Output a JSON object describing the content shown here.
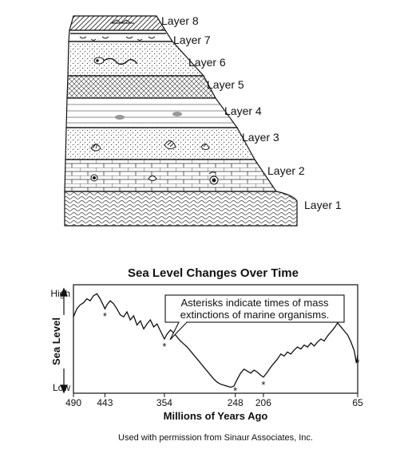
{
  "strata": {
    "layers": [
      {
        "label": "Layer 8"
      },
      {
        "label": "Layer 7"
      },
      {
        "label": "Layer 6"
      },
      {
        "label": "Layer 5"
      },
      {
        "label": "Layer 4"
      },
      {
        "label": "Layer 3"
      },
      {
        "label": "Layer 2"
      },
      {
        "label": "Layer 1"
      }
    ]
  },
  "chart_data": {
    "type": "line",
    "title": "Sea Level Changes Over Time",
    "xlabel": "Millions of Years Ago",
    "ylabel": "Sea Level",
    "y_high_label": "High",
    "y_low_label": "Low",
    "x_reversed": true,
    "xlim": [
      490,
      65
    ],
    "ylim": [
      0,
      1
    ],
    "x_ticks": [
      "490",
      "443",
      "354",
      "248",
      "206",
      "65"
    ],
    "tick_values": [
      490,
      443,
      354,
      248,
      206,
      65
    ],
    "series": [
      {
        "x": [
          490,
          485,
          480,
          475,
          470,
          465,
          460,
          455,
          450,
          445,
          443,
          440,
          435,
          430,
          425,
          420,
          415,
          410,
          405,
          400,
          395,
          390,
          385,
          380,
          375,
          370,
          365,
          360,
          354,
          350,
          345,
          340,
          335,
          330,
          325,
          320,
          315,
          310,
          305,
          300,
          295,
          290,
          285,
          280,
          275,
          270,
          265,
          260,
          255,
          250,
          248,
          245,
          240,
          235,
          230,
          225,
          220,
          215,
          210,
          206,
          200,
          195,
          190,
          185,
          180,
          175,
          170,
          165,
          160,
          155,
          150,
          145,
          140,
          135,
          130,
          125,
          120,
          115,
          110,
          105,
          100,
          95,
          90,
          85,
          80,
          75,
          70,
          67,
          65
        ],
        "values": [
          0.72,
          0.8,
          0.84,
          0.86,
          0.9,
          0.88,
          0.93,
          0.95,
          0.9,
          0.83,
          0.8,
          0.84,
          0.88,
          0.85,
          0.8,
          0.74,
          0.72,
          0.77,
          0.69,
          0.73,
          0.64,
          0.68,
          0.6,
          0.65,
          0.69,
          0.62,
          0.65,
          0.58,
          0.5,
          0.55,
          0.59,
          0.56,
          0.52,
          0.48,
          0.45,
          0.42,
          0.38,
          0.34,
          0.3,
          0.26,
          0.22,
          0.18,
          0.14,
          0.1,
          0.07,
          0.05,
          0.04,
          0.03,
          0.02,
          0.03,
          0.06,
          0.1,
          0.16,
          0.2,
          0.18,
          0.16,
          0.19,
          0.17,
          0.14,
          0.12,
          0.17,
          0.22,
          0.26,
          0.3,
          0.35,
          0.33,
          0.37,
          0.35,
          0.39,
          0.42,
          0.4,
          0.44,
          0.42,
          0.46,
          0.43,
          0.47,
          0.5,
          0.48,
          0.53,
          0.57,
          0.61,
          0.66,
          0.62,
          0.58,
          0.54,
          0.47,
          0.38,
          0.26,
          0.34
        ]
      }
    ],
    "extinction_events": [
      443,
      354,
      248,
      206,
      65
    ],
    "annotation": "Asterisks indicate times of mass extinctions of marine organisms.",
    "annotation_lines": [
      "Asterisks indicate times of mass",
      "extinctions of marine organisms."
    ]
  },
  "credit": "Used with permission from Sinaur Associates, Inc."
}
